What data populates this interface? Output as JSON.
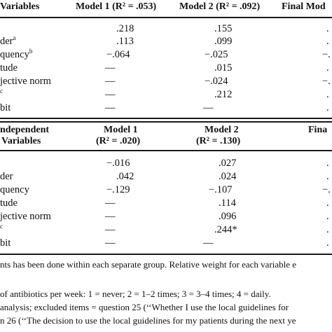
{
  "table1": {
    "header": {
      "variables": "Variables",
      "model1": "Model 1 (R² = .053)",
      "model2": "Model 2 (R² = .092)",
      "final": "Final Mod"
    },
    "rows": [
      {
        "label": "",
        "sup": "",
        "m1": ".218",
        "m2": ".155",
        "f": "."
      },
      {
        "label": "der",
        "sup": "a",
        "m1": ".113",
        "m2": ".099",
        "f": "."
      },
      {
        "label": "quency",
        "sup": "b",
        "m1": "−.064",
        "m2": "−.025",
        "f": "−."
      },
      {
        "label": "tude",
        "sup": "",
        "m1": "—",
        "m2": ".015",
        "f": "."
      },
      {
        "label": "jective norm",
        "sup": "",
        "m1": "—",
        "m2": "−.024",
        "f": "−."
      },
      {
        "label": "",
        "sup": "c",
        "m1": "—",
        "m2": ".212",
        "f": "."
      },
      {
        "label": "bit",
        "sup": "",
        "m1": "—",
        "m2": "—",
        "f": "."
      }
    ]
  },
  "table2": {
    "header": {
      "line1_left": "ndependent",
      "line2_left": "Variables",
      "model1_l1": "Model 1",
      "model1_l2": "(R² = .020)",
      "model2_l1": "Model 2",
      "model2_l2": "(R² = .130)",
      "final": "Fina"
    },
    "rows": [
      {
        "label": "",
        "sup": "",
        "m1": "−.016",
        "m2": ".027",
        "f": "."
      },
      {
        "label": "der",
        "sup": "",
        "m1": ".042",
        "m2": ".024",
        "f": "."
      },
      {
        "label": "quency",
        "sup": "",
        "m1": "−.129",
        "m2": "−.107",
        "f": "−."
      },
      {
        "label": "tude",
        "sup": "",
        "m1": "—",
        "m2": ".114",
        "f": "."
      },
      {
        "label": "jective norm",
        "sup": "",
        "m1": "—",
        "m2": ".096",
        "f": "."
      },
      {
        "label": "",
        "sup": "c",
        "m1": "—",
        "m2": ".244*",
        "f": "."
      },
      {
        "label": "bit",
        "sup": "",
        "m1": "—",
        "m2": "—",
        "f": "."
      }
    ]
  },
  "notes": {
    "line1": "nts has been done within each separate group. Relative weight for each variable e",
    "line2": "of antibiotics per week: 1 = never; 2 = 1–2 times; 3 = 3–4 times; 4 = daily.",
    "line3": "analysis; excluded items = question 25 (‘‘Whether I use the local guidelines for",
    "line4": "n 26 (‘‘The decision to use the local guidelines for my patients during the next ye"
  }
}
